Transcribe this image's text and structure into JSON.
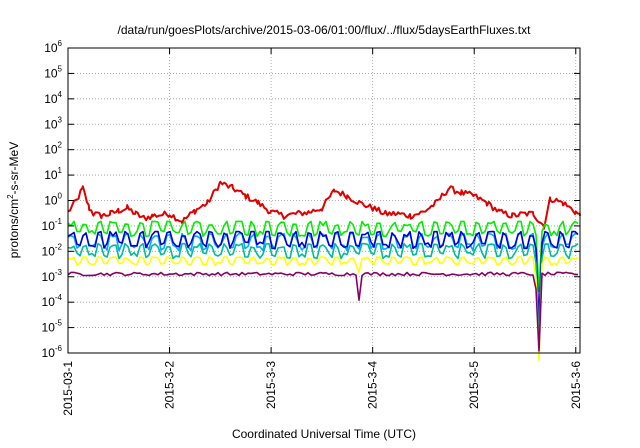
{
  "chart_data": {
    "type": "line",
    "title": "/data/run/goesPlots/archive/2015-03-06/01:00/flux/../flux/5daysEarthFluxes.txt",
    "xlabel": "Coordinated Universal Time (UTC)",
    "ylabel": "protons/cm2-s-sr-MeV",
    "ylabel_parts": {
      "pre": "protons/cm",
      "sup": "2",
      "post": "-s-sr-MeV"
    },
    "y_scale": "log",
    "ylim": [
      1e-06,
      1000000.0
    ],
    "y_ticks": [
      {
        "value": 1e-06,
        "base": "10",
        "exp": "-6"
      },
      {
        "value": 1e-05,
        "base": "10",
        "exp": "-5"
      },
      {
        "value": 0.0001,
        "base": "10",
        "exp": "-4"
      },
      {
        "value": 0.001,
        "base": "10",
        "exp": "-3"
      },
      {
        "value": 0.01,
        "base": "10",
        "exp": "-2"
      },
      {
        "value": 0.1,
        "base": "10",
        "exp": "-1"
      },
      {
        "value": 1,
        "base": "10",
        "exp": "0"
      },
      {
        "value": 10,
        "base": "10",
        "exp": "1"
      },
      {
        "value": 100,
        "base": "10",
        "exp": "2"
      },
      {
        "value": 1000,
        "base": "10",
        "exp": "3"
      },
      {
        "value": 10000,
        "base": "10",
        "exp": "4"
      },
      {
        "value": 100000,
        "base": "10",
        "exp": "5"
      },
      {
        "value": 1000000,
        "base": "10",
        "exp": "6"
      }
    ],
    "xlim": [
      "2015-03-01 00:00",
      "2015-03-06 01:00"
    ],
    "x_ticks": [
      {
        "value": "2015-03-01",
        "label": "2015-03-1"
      },
      {
        "value": "2015-03-02",
        "label": "2015-3-2"
      },
      {
        "value": "2015-03-03",
        "label": "2015-3-3"
      },
      {
        "value": "2015-03-04",
        "label": "2015-3-4"
      },
      {
        "value": "2015-03-05",
        "label": "2015-3-5"
      },
      {
        "value": "2015-03-06",
        "label": "2015-3-6"
      }
    ],
    "grid": true,
    "legend": "none",
    "series": [
      {
        "color": "#e00000",
        "x": [
          "2015-03-01 00:00",
          "2015-03-01 02:00",
          "2015-03-01 03:30",
          "2015-03-01 05:00",
          "2015-03-01 06:00",
          "2015-03-01 08:00",
          "2015-03-01 10:00",
          "2015-03-01 12:00",
          "2015-03-01 14:00",
          "2015-03-01 16:00",
          "2015-03-01 18:00",
          "2015-03-01 20:00",
          "2015-03-02 00:00",
          "2015-03-02 03:00",
          "2015-03-02 06:00",
          "2015-03-02 09:00",
          "2015-03-02 12:00",
          "2015-03-02 15:00",
          "2015-03-02 18:00",
          "2015-03-02 21:00",
          "2015-03-03 00:00",
          "2015-03-03 03:00",
          "2015-03-03 06:00",
          "2015-03-03 09:00",
          "2015-03-03 12:00",
          "2015-03-03 15:00",
          "2015-03-03 18:00",
          "2015-03-03 21:00",
          "2015-03-04 00:00",
          "2015-03-04 03:00",
          "2015-03-04 06:00",
          "2015-03-04 09:00",
          "2015-03-04 12:00",
          "2015-03-04 15:00",
          "2015-03-04 18:00",
          "2015-03-04 21:00",
          "2015-03-05 00:00",
          "2015-03-05 03:00",
          "2015-03-05 06:00",
          "2015-03-05 09:00",
          "2015-03-05 12:00",
          "2015-03-05 14:00",
          "2015-03-05 15:30",
          "2015-03-05 16:30",
          "2015-03-05 18:00",
          "2015-03-05 21:00",
          "2015-03-06 00:00",
          "2015-03-06 01:00"
        ],
        "y": [
          0.35,
          1.0,
          3.0,
          0.5,
          0.3,
          0.25,
          0.3,
          0.4,
          0.5,
          0.3,
          0.2,
          0.25,
          0.3,
          0.15,
          0.4,
          0.8,
          5.0,
          3.0,
          1.5,
          0.8,
          0.35,
          0.25,
          0.3,
          0.35,
          0.5,
          2.5,
          1.5,
          0.8,
          0.5,
          0.3,
          0.3,
          0.25,
          0.35,
          0.8,
          3.0,
          2.0,
          1.5,
          0.8,
          0.35,
          0.25,
          0.3,
          0.3,
          0.15,
          0.1,
          1.2,
          0.8,
          0.35,
          0.25
        ]
      },
      {
        "color": "#00ee00",
        "x": [
          "2015-03-01 00:00",
          "2015-03-06 01:00"
        ],
        "y": [
          0.07,
          0.07
        ],
        "band": [
          0.03,
          0.15
        ]
      },
      {
        "color": "#00aaff",
        "x": [
          "2015-03-01 00:00",
          "2015-03-06 01:00"
        ],
        "y": [
          0.02,
          0.02
        ],
        "band": [
          0.008,
          0.05
        ]
      },
      {
        "color": "#0000dd",
        "x": [
          "2015-03-01 00:00",
          "2015-03-06 01:00"
        ],
        "y": [
          0.025,
          0.025
        ],
        "band": [
          0.01,
          0.06
        ]
      },
      {
        "color": "#00bb99",
        "x": [
          "2015-03-01 00:00",
          "2015-03-06 01:00"
        ],
        "y": [
          0.008,
          0.008
        ],
        "band": [
          0.004,
          0.02
        ]
      },
      {
        "color": "#ffff00",
        "x": [
          "2015-03-01 00:00",
          "2015-03-06 01:00"
        ],
        "y": [
          0.004,
          0.004
        ],
        "band": [
          0.0025,
          0.006
        ]
      },
      {
        "color": "#880066",
        "x": [
          "2015-03-01 00:00",
          "2015-03-06 01:00"
        ],
        "y": [
          0.0012,
          0.0012
        ],
        "band": [
          0.0009,
          0.0015
        ]
      }
    ]
  }
}
